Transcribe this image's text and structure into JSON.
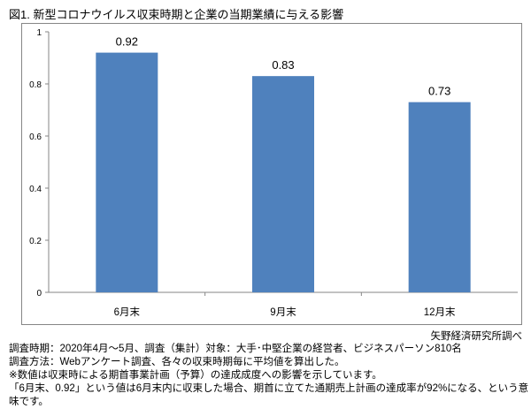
{
  "title": "図1. 新型コロナウイルス収束時期と企業の当期業績に与える影響",
  "source": "矢野経済研究所調べ",
  "notes": [
    "調査時期：2020年4月～5月、調査（集計）対象：大手･中堅企業の経営者、ビジネスパーソン810名",
    "調査方法：Webアンケート調査、各々の収束時期毎に平均値を算出した。",
    "※数値は収束時による期首事業計画（予算）の達成成度への影響を示しています。",
    "「6月末、0.92」という値は6月末内に収束した場合、期首に立てた通期売上計画の達成率が92%になる、という意味です。"
  ],
  "chart_data": {
    "type": "bar",
    "categories": [
      "6月末",
      "9月末",
      "12月末"
    ],
    "values": [
      0.92,
      0.83,
      0.73
    ],
    "value_labels": [
      "0.92",
      "0.83",
      "0.73"
    ],
    "ylim": [
      0,
      1
    ],
    "yticks": [
      "0",
      "0.2",
      "0.4",
      "0.6",
      "0.8",
      "1"
    ],
    "grid": false,
    "bar_color": "#4f81bd",
    "legend": "none"
  }
}
